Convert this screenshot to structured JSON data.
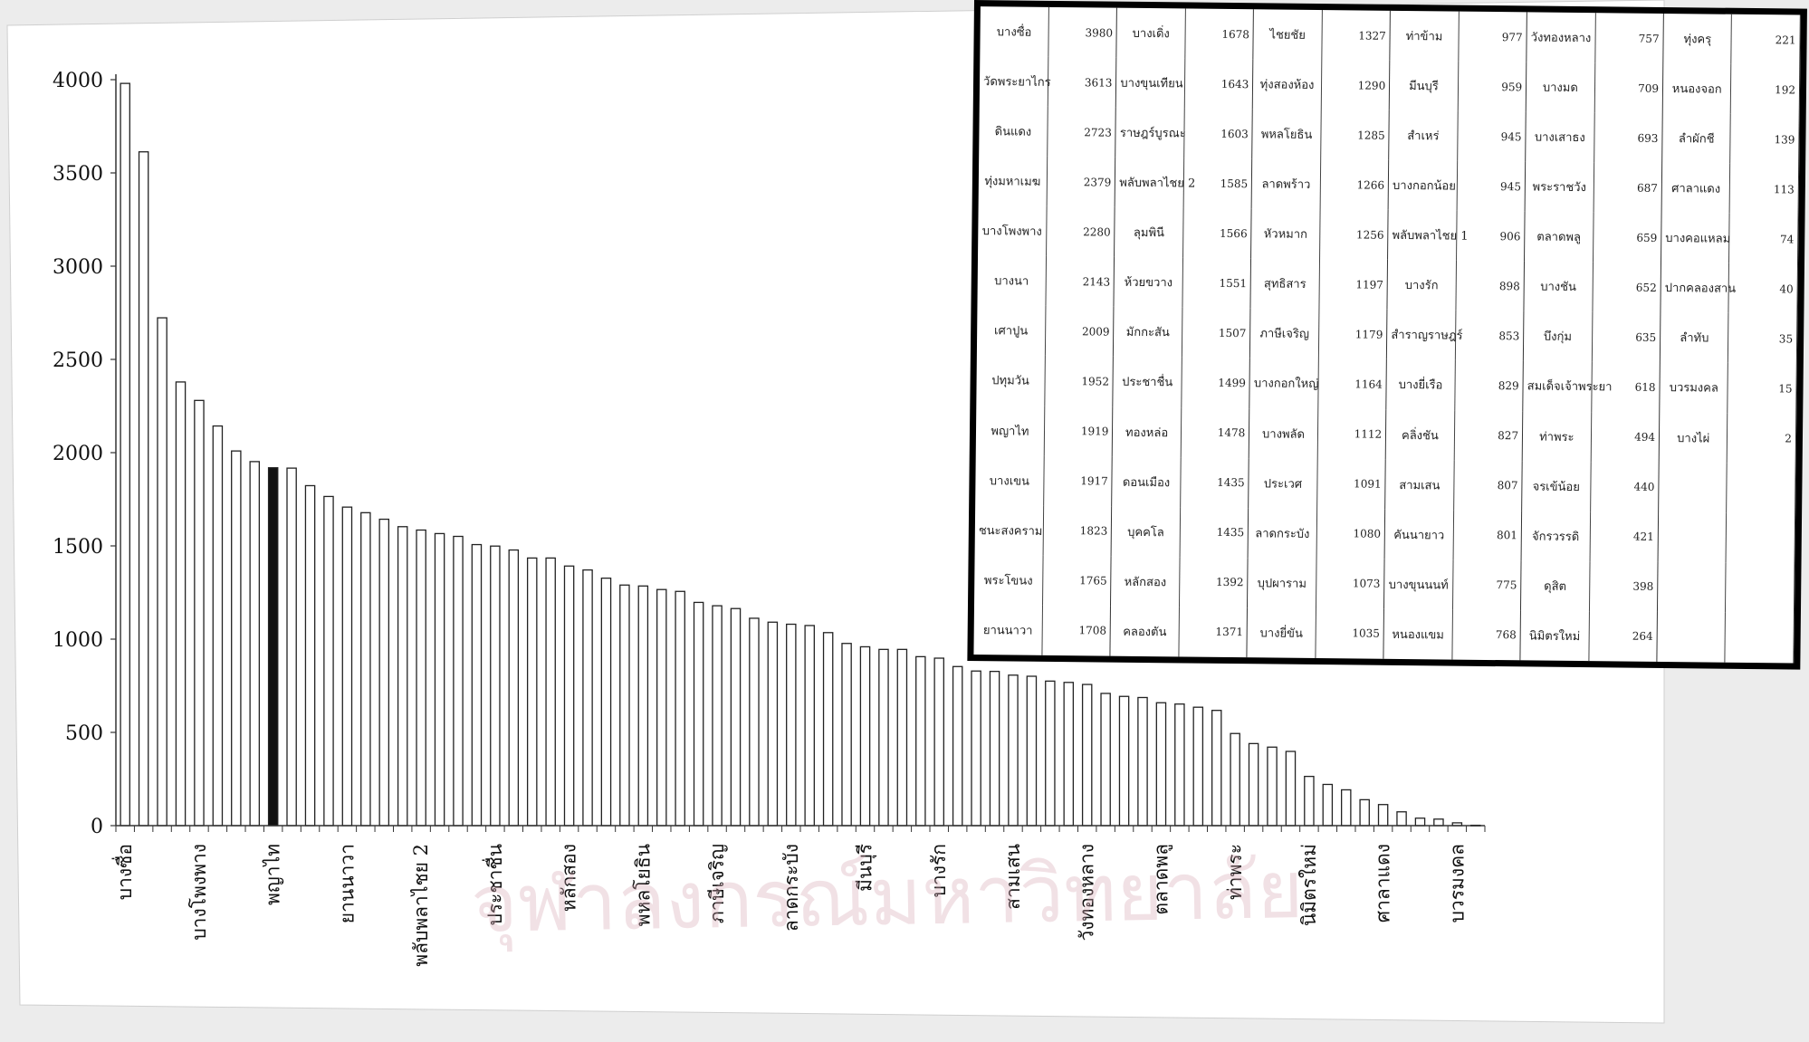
{
  "watermark": "จุฬาลงกรณ์มหาวิทยาลัย",
  "chart_data": {
    "type": "bar",
    "title": "",
    "xlabel": "",
    "ylabel": "",
    "ylim": [
      0,
      4000
    ],
    "yticks": [
      0,
      500,
      1000,
      1500,
      2000,
      2500,
      3000,
      3500,
      4000
    ],
    "highlight_index": 8,
    "categories": [
      "บางซื่อ",
      "วัดพระยาไกร",
      "ดินแดง",
      "ทุ่งมหาเมฆ",
      "บางโพงพาง",
      "บางนา",
      "เศาปูน",
      "ปทุมวัน",
      "พญาไท",
      "บางเขน",
      "ชนะสงคราม",
      "พระโขนง",
      "ยานนาวา",
      "บางเดิ่ง",
      "บางขุนเทียน",
      "ราษฎร์บูรณะ",
      "พลับพลาไชย 2",
      "ลุมพินี",
      "ห้วยขวาง",
      "มักกะสัน",
      "ประชาชื่น",
      "ทองหล่อ",
      "ดอนเมือง",
      "บุคคโล",
      "หลักสอง",
      "คลองตัน",
      "ไชยชัย",
      "ทุ่งสองห้อง",
      "พหลโยธิน",
      "ลาดพร้าว",
      "หัวหมาก",
      "สุทธิสาร",
      "ภาษีเจริญ",
      "บางกอกใหญ่",
      "บางพลัด",
      "ประเวศ",
      "ลาดกระบัง",
      "บุปผาราม",
      "บางยี่ขัน",
      "ท่าข้าม",
      "มีนบุรี",
      "สำเหร่",
      "บางกอกน้อย",
      "พลับพลาไชย 1",
      "บางรัก",
      "สำราญราษฎร์",
      "บางยี่เรือ",
      "คลิ่งชัน",
      "สามเสน",
      "คันนายาว",
      "บางขุนนนท์",
      "หนองแขม",
      "วังทองหลาง",
      "บางมด",
      "บางเสาธง",
      "พระราชวัง",
      "ตลาดพลู",
      "บางชัน",
      "บึงกุ่ม",
      "สมเด็จเจ้าพระยา",
      "ท่าพระ",
      "จรเข้น้อย",
      "จักรวรรดิ",
      "ดุสิต",
      "นิมิตรใหม่",
      "ทุ่งครุ",
      "หนองจอก",
      "ลำผักชี",
      "ศาลาแดง",
      "บางคอแหลม",
      "ปากคลองสาน",
      "ลำทับ",
      "บวรมงคล",
      "บางไผ่"
    ],
    "values": [
      3980,
      3613,
      2723,
      2379,
      2280,
      2143,
      2009,
      1952,
      1919,
      1917,
      1823,
      1765,
      1708,
      1678,
      1643,
      1603,
      1585,
      1566,
      1551,
      1507,
      1499,
      1478,
      1435,
      1435,
      1392,
      1371,
      1327,
      1290,
      1285,
      1266,
      1256,
      1197,
      1179,
      1164,
      1112,
      1091,
      1080,
      1073,
      1035,
      977,
      959,
      945,
      945,
      906,
      898,
      853,
      829,
      827,
      807,
      801,
      775,
      768,
      757,
      709,
      693,
      687,
      659,
      652,
      635,
      618,
      494,
      440,
      421,
      398,
      264,
      221,
      192,
      139,
      113,
      74,
      40,
      35,
      15,
      2
    ],
    "xtick_labels": [
      {
        "i": 0,
        "label": "บางซื่อ"
      },
      {
        "i": 4,
        "label": "บางโพงพาง"
      },
      {
        "i": 8,
        "label": "พญาไท"
      },
      {
        "i": 12,
        "label": "ยานนาวา"
      },
      {
        "i": 16,
        "label": "พลับพลาไชย 2"
      },
      {
        "i": 20,
        "label": "ประชาชื่น"
      },
      {
        "i": 24,
        "label": "หลักสอง"
      },
      {
        "i": 28,
        "label": "พหลโยธิน"
      },
      {
        "i": 32,
        "label": "ภาษีเจริญ"
      },
      {
        "i": 36,
        "label": "ลาดกระบัง"
      },
      {
        "i": 40,
        "label": "มีนบุรี"
      },
      {
        "i": 44,
        "label": "บางรัก"
      },
      {
        "i": 48,
        "label": "สามเสน"
      },
      {
        "i": 52,
        "label": "วังทองหลาง"
      },
      {
        "i": 56,
        "label": "ตลาดพลู"
      },
      {
        "i": 60,
        "label": "ท่าพระ"
      },
      {
        "i": 64,
        "label": "นิมิตรใหม่"
      },
      {
        "i": 68,
        "label": "ศาลาแดง"
      },
      {
        "i": 72,
        "label": "บวรมงคล"
      }
    ]
  },
  "table": {
    "rows": [
      [
        [
          "บางซื่อ",
          "3980"
        ],
        [
          "บางเดิ่ง",
          "1678"
        ],
        [
          "ไชยชัย",
          "1327"
        ],
        [
          "ท่าข้าม",
          "977"
        ],
        [
          "วังทองหลาง",
          "757"
        ],
        [
          "ทุ่งครุ",
          "221"
        ]
      ],
      [
        [
          "วัดพระยาไกร",
          "3613"
        ],
        [
          "บางขุนเทียน",
          "1643"
        ],
        [
          "ทุ่งสองห้อง",
          "1290"
        ],
        [
          "มีนบุรี",
          "959"
        ],
        [
          "บางมด",
          "709"
        ],
        [
          "หนองจอก",
          "192"
        ]
      ],
      [
        [
          "ดินแดง",
          "2723"
        ],
        [
          "ราษฎร์บูรณะ",
          "1603"
        ],
        [
          "พหลโยธิน",
          "1285"
        ],
        [
          "สำเหร่",
          "945"
        ],
        [
          "บางเสาธง",
          "693"
        ],
        [
          "ลำผักชี",
          "139"
        ]
      ],
      [
        [
          "ทุ่งมหาเมฆ",
          "2379"
        ],
        [
          "พลับพลาไชย 2",
          "1585"
        ],
        [
          "ลาดพร้าว",
          "1266"
        ],
        [
          "บางกอกน้อย",
          "945"
        ],
        [
          "พระราชวัง",
          "687"
        ],
        [
          "ศาลาแดง",
          "113"
        ]
      ],
      [
        [
          "บางโพงพาง",
          "2280"
        ],
        [
          "ลุมพินี",
          "1566"
        ],
        [
          "หัวหมาก",
          "1256"
        ],
        [
          "พลับพลาไชย 1",
          "906"
        ],
        [
          "ตลาดพลู",
          "659"
        ],
        [
          "บางคอแหลม",
          "74"
        ]
      ],
      [
        [
          "บางนา",
          "2143"
        ],
        [
          "ห้วยขวาง",
          "1551"
        ],
        [
          "สุทธิสาร",
          "1197"
        ],
        [
          "บางรัก",
          "898"
        ],
        [
          "บางชัน",
          "652"
        ],
        [
          "ปากคลองสาน",
          "40"
        ]
      ],
      [
        [
          "เศาปูน",
          "2009"
        ],
        [
          "มักกะสัน",
          "1507"
        ],
        [
          "ภาษีเจริญ",
          "1179"
        ],
        [
          "สำราญราษฎร์",
          "853"
        ],
        [
          "บึงกุ่ม",
          "635"
        ],
        [
          "ลำทับ",
          "35"
        ]
      ],
      [
        [
          "ปทุมวัน",
          "1952"
        ],
        [
          "ประชาชื่น",
          "1499"
        ],
        [
          "บางกอกใหญ่",
          "1164"
        ],
        [
          "บางยี่เรือ",
          "829"
        ],
        [
          "สมเด็จเจ้าพระยา",
          "618"
        ],
        [
          "บวรมงคล",
          "15"
        ]
      ],
      [
        [
          "พญาไท",
          "1919"
        ],
        [
          "ทองหล่อ",
          "1478"
        ],
        [
          "บางพลัด",
          "1112"
        ],
        [
          "คลิ่งชัน",
          "827"
        ],
        [
          "ท่าพระ",
          "494"
        ],
        [
          "บางไผ่",
          "2"
        ]
      ],
      [
        [
          "บางเขน",
          "1917"
        ],
        [
          "ดอนเมือง",
          "1435"
        ],
        [
          "ประเวศ",
          "1091"
        ],
        [
          "สามเสน",
          "807"
        ],
        [
          "จรเข้น้อย",
          "440"
        ],
        [
          "",
          ""
        ]
      ],
      [
        [
          "ชนะสงคราม",
          "1823"
        ],
        [
          "บุคคโล",
          "1435"
        ],
        [
          "ลาดกระบัง",
          "1080"
        ],
        [
          "คันนายาว",
          "801"
        ],
        [
          "จักรวรรดิ",
          "421"
        ],
        [
          "",
          ""
        ]
      ],
      [
        [
          "พระโขนง",
          "1765"
        ],
        [
          "หลักสอง",
          "1392"
        ],
        [
          "บุปผาราม",
          "1073"
        ],
        [
          "บางขุนนนท์",
          "775"
        ],
        [
          "ดุสิต",
          "398"
        ],
        [
          "",
          ""
        ]
      ],
      [
        [
          "ยานนาวา",
          "1708"
        ],
        [
          "คลองตัน",
          "1371"
        ],
        [
          "บางยี่ขัน",
          "1035"
        ],
        [
          "หนองแขม",
          "768"
        ],
        [
          "นิมิตรใหม่",
          "264"
        ],
        [
          "",
          ""
        ]
      ]
    ]
  }
}
